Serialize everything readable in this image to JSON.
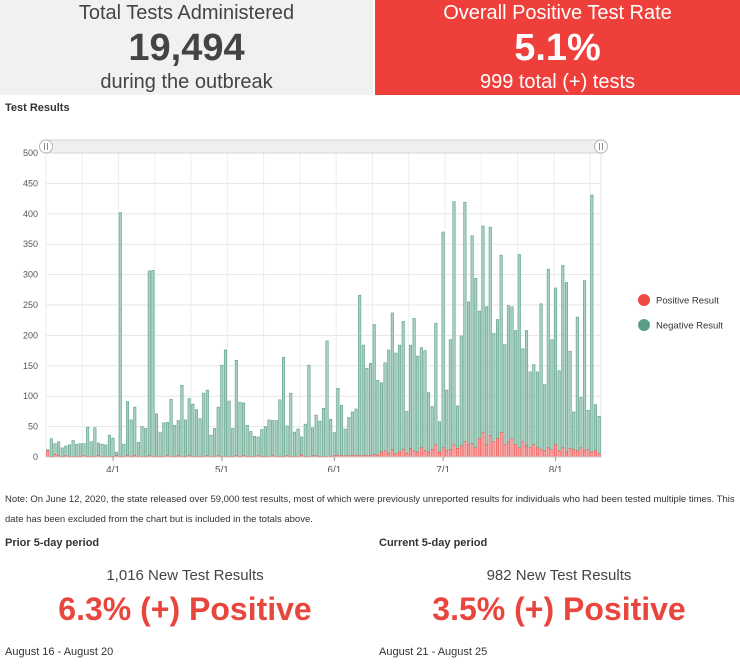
{
  "kpis": {
    "total": {
      "title": "Total Tests Administered",
      "value": "19,494",
      "subtitle": "during the outbreak"
    },
    "positive_rate": {
      "title": "Overall Positive Test Rate",
      "value": "5.1%",
      "subtitle": "999 total (+) tests"
    }
  },
  "chart_title": "Test Results",
  "note": "Note: On June 12, 2020, the state released over 59,000 test results, most of which were previously unreported results for individuals who had been tested multiple times. This date has been excluded from the chart but is included in the totals above.",
  "periods": {
    "prior": {
      "title": "Prior 5-day period",
      "count": "1,016 New Test Results",
      "rate": "6.3% (+) Positive",
      "dates": "August 16 - August 20"
    },
    "current": {
      "title": "Current 5-day period",
      "count": "982 New Test Results",
      "rate": "3.5% (+) Positive",
      "dates": "August 21 - August 25"
    }
  },
  "colors": {
    "positive": "#f04a47",
    "negative": "#5a9e86",
    "accent": "#ef3f3b"
  },
  "chart_data": {
    "type": "bar",
    "stacked": true,
    "title": "Test Results",
    "xlabel": "",
    "ylabel": "",
    "ylim": [
      0,
      500
    ],
    "yticks": [
      0,
      50,
      100,
      150,
      200,
      250,
      300,
      350,
      400,
      450,
      500
    ],
    "xticks": [
      "4/1",
      "5/1",
      "6/1",
      "7/1",
      "8/1"
    ],
    "xtick_day_index": [
      18,
      48,
      79,
      109,
      140
    ],
    "legend": {
      "position": "right",
      "entries": [
        "Positive Result",
        "Negative Result"
      ]
    },
    "grid": true,
    "range_slider": true,
    "series": [
      {
        "name": "Positive Result",
        "color": "#f04a47",
        "values": [
          10,
          1,
          4,
          2,
          1,
          2,
          1,
          1,
          1,
          1,
          2,
          1,
          1,
          1,
          2,
          1,
          1,
          1,
          1,
          2,
          1,
          1,
          2,
          1,
          3,
          1,
          1,
          1,
          2,
          1,
          1,
          1,
          1,
          2,
          1,
          1,
          2,
          1,
          1,
          2,
          1,
          1,
          1,
          1,
          2,
          1,
          1,
          2,
          1,
          1,
          1,
          1,
          2,
          1,
          2,
          1,
          1,
          1,
          2,
          1,
          1,
          1,
          2,
          1,
          1,
          1,
          2,
          1,
          1,
          1,
          3,
          1,
          1,
          2,
          2,
          1,
          1,
          1,
          1,
          2,
          3,
          2,
          2,
          2,
          2,
          3,
          2,
          2,
          3,
          2,
          4,
          3,
          8,
          10,
          6,
          12,
          5,
          8,
          12,
          6,
          14,
          10,
          8,
          15,
          10,
          8,
          12,
          20,
          8,
          15,
          10,
          12,
          20,
          14,
          18,
          25,
          20,
          22,
          15,
          30,
          40,
          20,
          35,
          25,
          30,
          40,
          20,
          25,
          30,
          20,
          15,
          25,
          18,
          15,
          20,
          15,
          12,
          10,
          15,
          12,
          20,
          10,
          15,
          8,
          14,
          12,
          10,
          15,
          10,
          12,
          8,
          10,
          5
        ]
      },
      {
        "name": "Negative Result",
        "color": "#5a9e86",
        "values": [
          2,
          29,
          18,
          23,
          14,
          16,
          19,
          26,
          20,
          21,
          20,
          48,
          24,
          47,
          21,
          20,
          19,
          35,
          30,
          6,
          401,
          20,
          89,
          60,
          79,
          23,
          49,
          46,
          304,
          306,
          70,
          39,
          55,
          55,
          94,
          51,
          58,
          117,
          60,
          94,
          86,
          77,
          62,
          104,
          108,
          35,
          46,
          80,
          150,
          175,
          91,
          46,
          157,
          89,
          87,
          51,
          41,
          33,
          31,
          44,
          49,
          60,
          58,
          59,
          93,
          163,
          49,
          104,
          40,
          45,
          30,
          53,
          150,
          46,
          67,
          58,
          79,
          190,
          61,
          38,
          110,
          83,
          44,
          63,
          72,
          76,
          264,
          182,
          143,
          152,
          214,
          123,
          114,
          145,
          170,
          225,
          166,
          176,
          211,
          69,
          170,
          218,
          158,
          165,
          165,
          98,
          71,
          200,
          50,
          355,
          100,
          181,
          400,
          70,
          181,
          394,
          235,
          342,
          279,
          210,
          340,
          227,
          343,
          178,
          196,
          292,
          165,
          224,
          217,
          188,
          318,
          153,
          190,
          125,
          132,
          125,
          240,
          109,
          294,
          181,
          258,
          132,
          300,
          279,
          160,
          62,
          220,
          83,
          280,
          65,
          423,
          76,
          62
        ]
      }
    ]
  }
}
